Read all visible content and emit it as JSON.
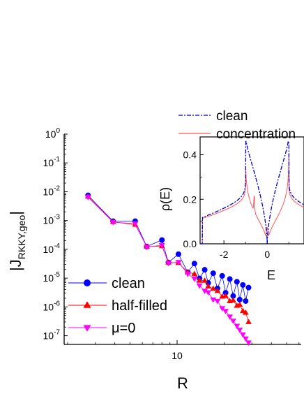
{
  "chart_data": [
    {
      "type": "scatter",
      "xlabel": "R",
      "ylabel_main": "|J",
      "ylabel_sub": "RKKY,geo",
      "ylabel_end": "|",
      "x_scale": "log",
      "y_scale": "log",
      "xlim": [
        1.9,
        62
      ],
      "ylim": [
        5e-08,
        1
      ],
      "x_tick_labels": [
        {
          "value": 10,
          "label": "10"
        }
      ],
      "y_tick_labels": [
        {
          "value": 1,
          "base": "10",
          "exp": "0"
        },
        {
          "value": 0.1,
          "base": "10",
          "exp": "-1"
        },
        {
          "value": 0.01,
          "base": "10",
          "exp": "-2"
        },
        {
          "value": 0.001,
          "base": "10",
          "exp": "-3"
        },
        {
          "value": 0.0001,
          "base": "10",
          "exp": "-4"
        },
        {
          "value": 1e-05,
          "base": "10",
          "exp": "-5"
        },
        {
          "value": 1e-06,
          "base": "10",
          "exp": "-6"
        },
        {
          "value": 1e-07,
          "base": "10",
          "exp": "-7"
        }
      ],
      "legend_position": "bottom-left",
      "series": [
        {
          "name": "clean",
          "color": "#0000ff",
          "marker": "circle",
          "x": [
            2.7,
            3.9,
            5.4,
            6.4,
            8.0,
            8.8,
            10.2,
            11.7,
            12.9,
            13.9,
            15.0,
            15.8,
            17.0,
            18.1,
            19.4,
            20.4,
            21.7,
            22.8,
            24.1,
            25.1,
            26.3,
            27.4,
            28.6
          ],
          "y": [
            0.0075,
            0.00095,
            0.00095,
            0.000125,
            0.00021,
            3.5e-05,
            6.8e-05,
            1.6e-05,
            3.2e-05,
            9.8e-06,
            1.95e-05,
            6.8e-06,
            1.48e-05,
            4.4e-06,
            1.2e-05,
            3.1e-06,
            9.3e-06,
            2.4e-06,
            7.5e-06,
            1.8e-06,
            5.8e-06,
            1.6e-06,
            4.7e-06
          ]
        },
        {
          "name": "half-filled",
          "color": "#ff0000",
          "marker": "triangle-up",
          "x": [
            2.7,
            3.9,
            5.4,
            6.4,
            8.0,
            8.8,
            10.2,
            11.7,
            12.9,
            13.9,
            15.0,
            15.8,
            17.0,
            18.1,
            19.4,
            20.4,
            21.7,
            22.8,
            24.1,
            25.1,
            26.3,
            27.4,
            28.6
          ],
          "y": [
            0.0068,
            0.0009,
            0.00072,
            0.000125,
            0.00013,
            3.5e-05,
            3.4e-05,
            1.6e-05,
            1.4e-05,
            8.2e-06,
            8.2e-06,
            5.2e-06,
            4.3e-06,
            3.6e-06,
            2.3e-06,
            2.4e-06,
            1.6e-06,
            1.7e-06,
            1.1e-06,
            1.2e-06,
            7.2e-07,
            6.3e-07,
            3e-07
          ]
        },
        {
          "name": "μ=0",
          "color": "#ff00ff",
          "marker": "triangle-down",
          "x": [
            2.7,
            3.9,
            5.4,
            6.4,
            8.0,
            8.8,
            10.2,
            11.7,
            12.9,
            13.9,
            15.0,
            15.8,
            17.0,
            18.1,
            19.4,
            20.4,
            21.7,
            22.8,
            24.1,
            25.1,
            26.3,
            27.4,
            28.6
          ],
          "y": [
            0.0065,
            0.00088,
            0.00078,
            0.00012,
            0.00014,
            3.3e-05,
            3.6e-05,
            1.4e-05,
            9.5e-06,
            5.5e-06,
            3.6e-06,
            3.2e-06,
            1.8e-06,
            1.6e-06,
            9e-07,
            7.2e-07,
            4.6e-07,
            3.3e-07,
            2.2e-07,
            1.6e-07,
            1.1e-07,
            8e-08,
            5.8e-08
          ]
        }
      ]
    },
    {
      "type": "line",
      "xlabel": "E",
      "ylabel": "ρ(E)",
      "xlim": [
        -3.1,
        1.7
      ],
      "ylim": [
        0,
        0.48
      ],
      "x_tick_labels": [
        {
          "value": -2,
          "label": "-2"
        },
        {
          "value": 0,
          "label": "0"
        }
      ],
      "y_tick_labels": [
        {
          "value": 0.0,
          "label": "0.0"
        },
        {
          "value": 0.2,
          "label": "0.2"
        },
        {
          "value": 0.4,
          "label": "0.4"
        }
      ],
      "legend_position": "top-right",
      "series": [
        {
          "name": "clean",
          "color": "#0000cc",
          "style": "dash-dot"
        },
        {
          "name": "concentration",
          "color": "#ff5555",
          "style": "solid"
        }
      ]
    }
  ]
}
